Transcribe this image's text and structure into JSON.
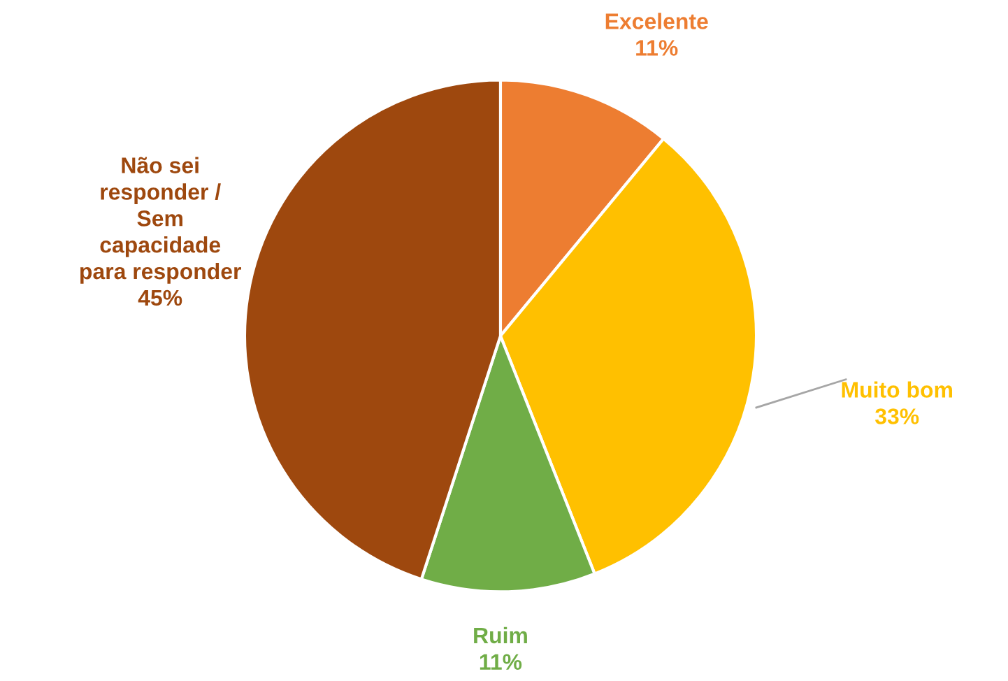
{
  "chart_data": {
    "type": "pie",
    "categories": [
      "Excelente",
      "Muito bom",
      "Ruim",
      "Não sei\nresponder /\nSem\ncapacidade\npara responder"
    ],
    "values": [
      11,
      33,
      11,
      45
    ],
    "colors": [
      "#ed7d31",
      "#ffc000",
      "#70ad47",
      "#9e480e"
    ],
    "value_labels": [
      "11%",
      "33%",
      "11%",
      "45%"
    ]
  }
}
